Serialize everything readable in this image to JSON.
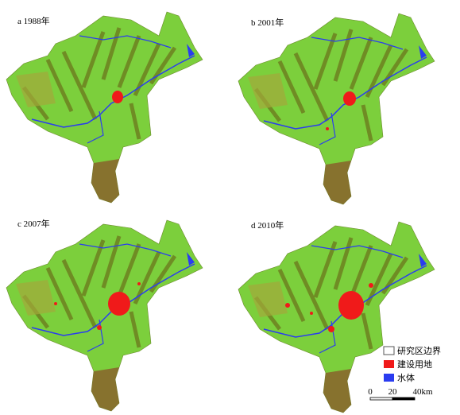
{
  "panels": [
    {
      "label": "a 1988年"
    },
    {
      "label": "b 2001年"
    },
    {
      "label": "c 2007年"
    },
    {
      "label": "d 2010年"
    }
  ],
  "legend": {
    "items": [
      "研究区边界",
      "建设用地",
      "水体"
    ]
  },
  "scale_bar": {
    "labels": [
      "0",
      "20",
      "40km"
    ]
  }
}
